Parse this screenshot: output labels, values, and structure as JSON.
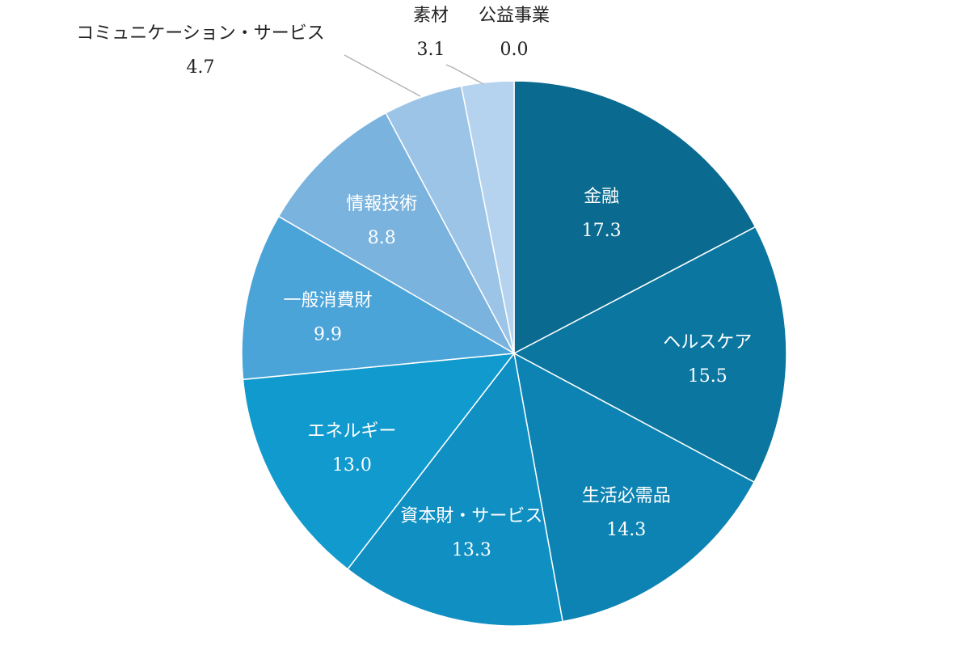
{
  "chart_data": {
    "type": "pie",
    "title": "",
    "start": "top",
    "direction": "clockwise",
    "legend": "none",
    "slices": [
      {
        "label": "金融",
        "value": 17.3,
        "value_label": "17.3",
        "color": "#0a6a8f"
      },
      {
        "label": "ヘルスケア",
        "value": 15.5,
        "value_label": "15.5",
        "color": "#0b77a0"
      },
      {
        "label": "生活必需品",
        "value": 14.3,
        "value_label": "14.3",
        "color": "#0c83b2"
      },
      {
        "label": "資本財・サービス",
        "value": 13.3,
        "value_label": "13.3",
        "color": "#0f8fc2"
      },
      {
        "label": "エネルギー",
        "value": 13.0,
        "value_label": "13.0",
        "color": "#119acd"
      },
      {
        "label": "一般消費財",
        "value": 9.9,
        "value_label": "9.9",
        "color": "#4ba4d8"
      },
      {
        "label": "情報技術",
        "value": 8.8,
        "value_label": "8.8",
        "color": "#7ab3dd"
      },
      {
        "label": "コミュニケーション・サービス",
        "value": 4.7,
        "value_label": "4.7",
        "color": "#9cc4e6"
      },
      {
        "label": "素材",
        "value": 3.1,
        "value_label": "3.1",
        "color": "#b5d3ee"
      },
      {
        "label": "公益事業",
        "value": 0.0,
        "value_label": "0.0",
        "color": "#c8def2"
      }
    ]
  }
}
